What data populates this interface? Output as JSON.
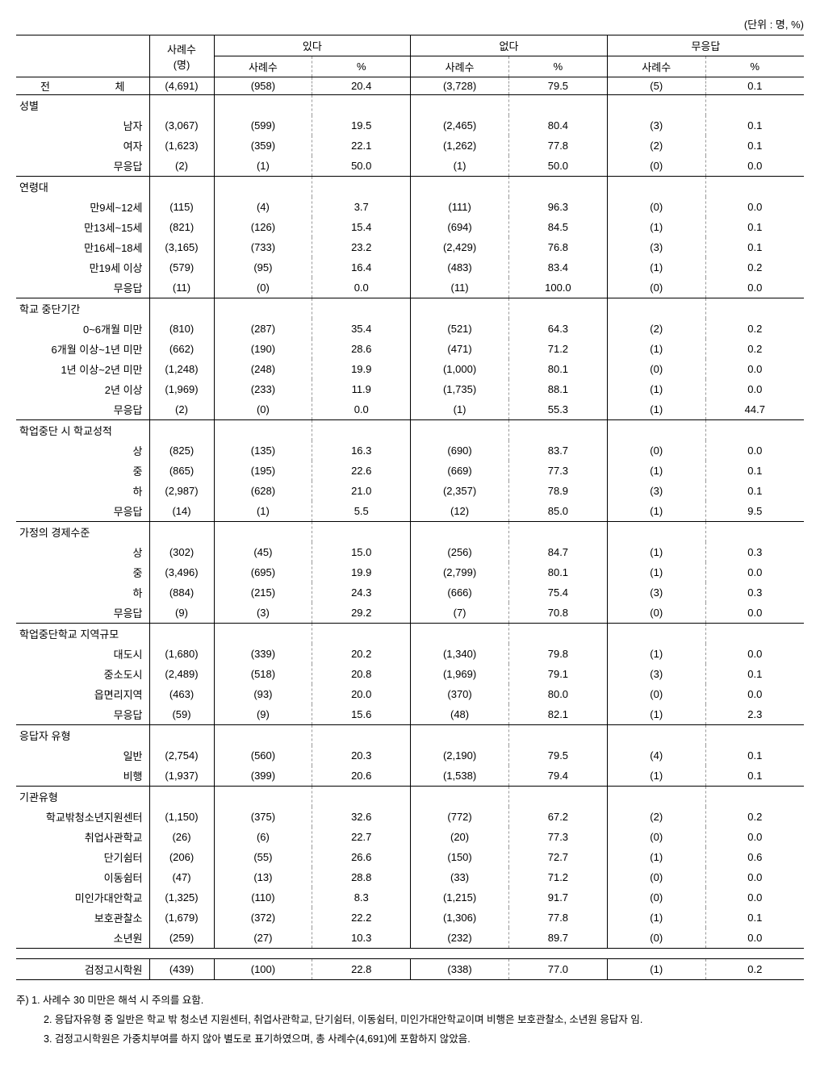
{
  "unit_text": "(단위 : 명, %)",
  "header": {
    "case_label": "사례수\n(명)",
    "groups": [
      "있다",
      "없다",
      "무응답"
    ],
    "sub": [
      "사례수",
      "%"
    ]
  },
  "total_label": "전      체",
  "total_row": [
    "(4,691)",
    "(958)",
    "20.4",
    "(3,728)",
    "79.5",
    "(5)",
    "0.1"
  ],
  "sections": [
    {
      "title": "성별",
      "rows": [
        {
          "label": "남자",
          "v": [
            "(3,067)",
            "(599)",
            "19.5",
            "(2,465)",
            "80.4",
            "(3)",
            "0.1"
          ]
        },
        {
          "label": "여자",
          "v": [
            "(1,623)",
            "(359)",
            "22.1",
            "(1,262)",
            "77.8",
            "(2)",
            "0.1"
          ]
        },
        {
          "label": "무응답",
          "v": [
            "(2)",
            "(1)",
            "50.0",
            "(1)",
            "50.0",
            "(0)",
            "0.0"
          ]
        }
      ]
    },
    {
      "title": "연령대",
      "rows": [
        {
          "label": "만9세~12세",
          "v": [
            "(115)",
            "(4)",
            "3.7",
            "(111)",
            "96.3",
            "(0)",
            "0.0"
          ]
        },
        {
          "label": "만13세~15세",
          "v": [
            "(821)",
            "(126)",
            "15.4",
            "(694)",
            "84.5",
            "(1)",
            "0.1"
          ]
        },
        {
          "label": "만16세~18세",
          "v": [
            "(3,165)",
            "(733)",
            "23.2",
            "(2,429)",
            "76.8",
            "(3)",
            "0.1"
          ]
        },
        {
          "label": "만19세 이상",
          "v": [
            "(579)",
            "(95)",
            "16.4",
            "(483)",
            "83.4",
            "(1)",
            "0.2"
          ]
        },
        {
          "label": "무응답",
          "v": [
            "(11)",
            "(0)",
            "0.0",
            "(11)",
            "100.0",
            "(0)",
            "0.0"
          ]
        }
      ]
    },
    {
      "title": "학교 중단기간",
      "rows": [
        {
          "label": "0~6개월 미만",
          "v": [
            "(810)",
            "(287)",
            "35.4",
            "(521)",
            "64.3",
            "(2)",
            "0.2"
          ]
        },
        {
          "label": "6개월 이상~1년 미만",
          "v": [
            "(662)",
            "(190)",
            "28.6",
            "(471)",
            "71.2",
            "(1)",
            "0.2"
          ]
        },
        {
          "label": "1년 이상~2년 미만",
          "v": [
            "(1,248)",
            "(248)",
            "19.9",
            "(1,000)",
            "80.1",
            "(0)",
            "0.0"
          ]
        },
        {
          "label": "2년 이상",
          "v": [
            "(1,969)",
            "(233)",
            "11.9",
            "(1,735)",
            "88.1",
            "(1)",
            "0.0"
          ]
        },
        {
          "label": "무응답",
          "v": [
            "(2)",
            "(0)",
            "0.0",
            "(1)",
            "55.3",
            "(1)",
            "44.7"
          ]
        }
      ]
    },
    {
      "title": "학업중단 시 학교성적",
      "rows": [
        {
          "label": "상",
          "v": [
            "(825)",
            "(135)",
            "16.3",
            "(690)",
            "83.7",
            "(0)",
            "0.0"
          ]
        },
        {
          "label": "중",
          "v": [
            "(865)",
            "(195)",
            "22.6",
            "(669)",
            "77.3",
            "(1)",
            "0.1"
          ]
        },
        {
          "label": "하",
          "v": [
            "(2,987)",
            "(628)",
            "21.0",
            "(2,357)",
            "78.9",
            "(3)",
            "0.1"
          ]
        },
        {
          "label": "무응답",
          "v": [
            "(14)",
            "(1)",
            "5.5",
            "(12)",
            "85.0",
            "(1)",
            "9.5"
          ]
        }
      ]
    },
    {
      "title": "가정의 경제수준",
      "rows": [
        {
          "label": "상",
          "v": [
            "(302)",
            "(45)",
            "15.0",
            "(256)",
            "84.7",
            "(1)",
            "0.3"
          ]
        },
        {
          "label": "중",
          "v": [
            "(3,496)",
            "(695)",
            "19.9",
            "(2,799)",
            "80.1",
            "(1)",
            "0.0"
          ]
        },
        {
          "label": "하",
          "v": [
            "(884)",
            "(215)",
            "24.3",
            "(666)",
            "75.4",
            "(3)",
            "0.3"
          ]
        },
        {
          "label": "무응답",
          "v": [
            "(9)",
            "(3)",
            "29.2",
            "(7)",
            "70.8",
            "(0)",
            "0.0"
          ]
        }
      ]
    },
    {
      "title": "학업중단학교 지역규모",
      "rows": [
        {
          "label": "대도시",
          "v": [
            "(1,680)",
            "(339)",
            "20.2",
            "(1,340)",
            "79.8",
            "(1)",
            "0.0"
          ]
        },
        {
          "label": "중소도시",
          "v": [
            "(2,489)",
            "(518)",
            "20.8",
            "(1,969)",
            "79.1",
            "(3)",
            "0.1"
          ]
        },
        {
          "label": "읍면리지역",
          "v": [
            "(463)",
            "(93)",
            "20.0",
            "(370)",
            "80.0",
            "(0)",
            "0.0"
          ]
        },
        {
          "label": "무응답",
          "v": [
            "(59)",
            "(9)",
            "15.6",
            "(48)",
            "82.1",
            "(1)",
            "2.3"
          ]
        }
      ]
    },
    {
      "title": "응답자 유형",
      "rows": [
        {
          "label": "일반",
          "v": [
            "(2,754)",
            "(560)",
            "20.3",
            "(2,190)",
            "79.5",
            "(4)",
            "0.1"
          ]
        },
        {
          "label": "비행",
          "v": [
            "(1,937)",
            "(399)",
            "20.6",
            "(1,538)",
            "79.4",
            "(1)",
            "0.1"
          ]
        }
      ]
    },
    {
      "title": "기관유형",
      "rows": [
        {
          "label": "학교밖청소년지원센터",
          "v": [
            "(1,150)",
            "(375)",
            "32.6",
            "(772)",
            "67.2",
            "(2)",
            "0.2"
          ]
        },
        {
          "label": "취업사관학교",
          "v": [
            "(26)",
            "(6)",
            "22.7",
            "(20)",
            "77.3",
            "(0)",
            "0.0"
          ]
        },
        {
          "label": "단기쉼터",
          "v": [
            "(206)",
            "(55)",
            "26.6",
            "(150)",
            "72.7",
            "(1)",
            "0.6"
          ]
        },
        {
          "label": "이동쉼터",
          "v": [
            "(47)",
            "(13)",
            "28.8",
            "(33)",
            "71.2",
            "(0)",
            "0.0"
          ]
        },
        {
          "label": "미인가대안학교",
          "v": [
            "(1,325)",
            "(110)",
            "8.3",
            "(1,215)",
            "91.7",
            "(0)",
            "0.0"
          ]
        },
        {
          "label": "보호관찰소",
          "v": [
            "(1,679)",
            "(372)",
            "22.2",
            "(1,306)",
            "77.8",
            "(1)",
            "0.1"
          ]
        },
        {
          "label": "소년원",
          "v": [
            "(259)",
            "(27)",
            "10.3",
            "(232)",
            "89.7",
            "(0)",
            "0.0"
          ]
        }
      ]
    }
  ],
  "extra_row": {
    "label": "검정고시학원",
    "v": [
      "(439)",
      "(100)",
      "22.8",
      "(338)",
      "77.0",
      "(1)",
      "0.2"
    ]
  },
  "footnotes": {
    "prefix": "주)",
    "items": [
      "1. 사례수 30 미만은 해석 시 주의를 요함.",
      "2. 응답자유형 중 일반은 학교 밖 청소년 지원센터, 취업사관학교, 단기쉼터, 이동쉼터, 미인가대안학교이며 비행은 보호관찰소, 소년원 응답자 임.",
      "3. 검정고시학원은 가중치부여를 하지 않아 별도로 표기하였으며, 총 사례수(4,691)에 포함하지 않았음."
    ]
  },
  "style": {
    "font_size_pt": 10,
    "text_color": "#000000",
    "background_color": "#ffffff",
    "border_color": "#000000",
    "dashed_color": "#999999"
  }
}
